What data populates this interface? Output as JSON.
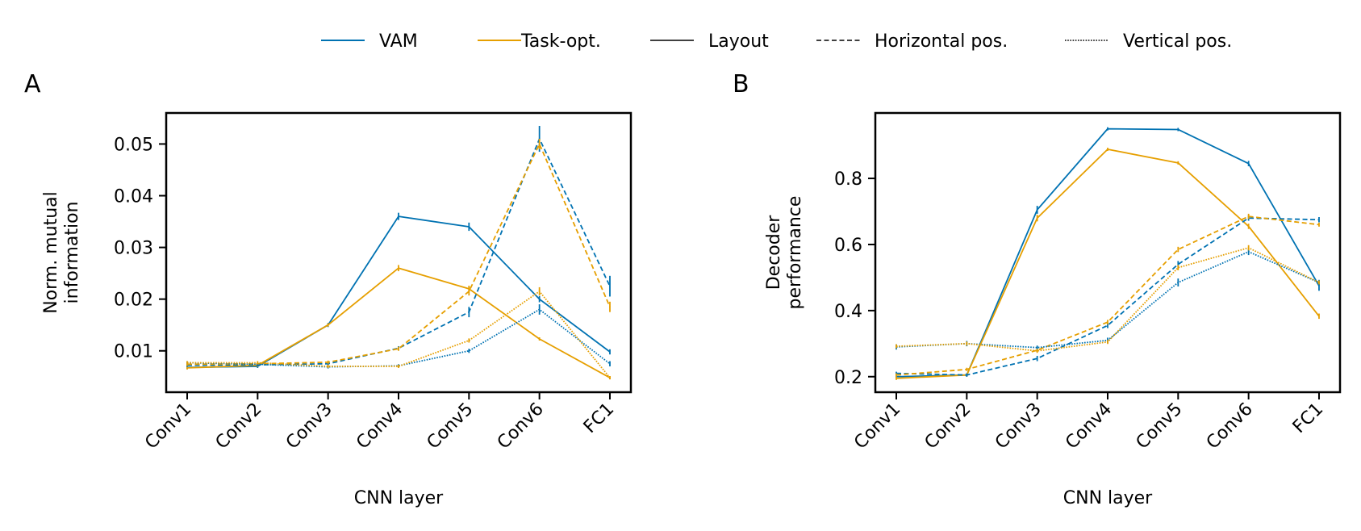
{
  "figure": {
    "panel_labels": [
      "A",
      "B"
    ],
    "legend": [
      {
        "label": "VAM",
        "kind": "color",
        "color": "#0072b2"
      },
      {
        "label": "Task-opt.",
        "kind": "color",
        "color": "#e69f00"
      },
      {
        "label": "Layout",
        "kind": "style",
        "dash": "solid"
      },
      {
        "label": "Horizontal pos.",
        "kind": "style",
        "dash": "dashed"
      },
      {
        "label": "Vertical pos.",
        "kind": "style",
        "dash": "dotted"
      }
    ]
  },
  "chart_data": [
    {
      "type": "line",
      "panel": "A",
      "title": "",
      "xlabel": "CNN layer",
      "ylabel": [
        "Norm. mutual",
        "information"
      ],
      "categories": [
        "Conv1",
        "Conv2",
        "Conv3",
        "Conv4",
        "Conv5",
        "Conv6",
        "FC1"
      ],
      "ylim": [
        0.002,
        0.056
      ],
      "yticks": [
        0.01,
        0.02,
        0.03,
        0.04,
        0.05
      ],
      "ytick_labels": [
        "0.01",
        "0.02",
        "0.03",
        "0.04",
        "0.05"
      ],
      "series": [
        {
          "name": "VAM - Layout",
          "model": "VAM",
          "target": "Layout",
          "color": "#0072b2",
          "dash": "solid",
          "values": [
            0.0068,
            0.007,
            0.015,
            0.036,
            0.034,
            0.02,
            0.0098
          ],
          "errors": [
            0.0003,
            0.0003,
            0.0004,
            0.0007,
            0.0008,
            0.0006,
            0.0005
          ]
        },
        {
          "name": "Task-opt. - Layout",
          "model": "Task-opt.",
          "target": "Layout",
          "color": "#e69f00",
          "dash": "solid",
          "values": [
            0.0067,
            0.0072,
            0.015,
            0.026,
            0.022,
            0.0123,
            0.0048
          ],
          "errors": [
            0.0002,
            0.0002,
            0.0003,
            0.0006,
            0.0006,
            0.0003,
            0.0002
          ]
        },
        {
          "name": "VAM - Horizontal pos.",
          "model": "VAM",
          "target": "Horizontal pos.",
          "color": "#0072b2",
          "dash": "dashed",
          "values": [
            0.0072,
            0.0073,
            0.0075,
            0.0105,
            0.0175,
            0.051,
            0.0225
          ],
          "errors": [
            0.0003,
            0.0003,
            0.0003,
            0.0004,
            0.001,
            0.0025,
            0.002
          ]
        },
        {
          "name": "Task-opt. - Horizontal pos.",
          "model": "Task-opt.",
          "target": "Horizontal pos.",
          "color": "#e69f00",
          "dash": "dashed",
          "values": [
            0.0074,
            0.0075,
            0.0078,
            0.0104,
            0.0215,
            0.05,
            0.0185
          ],
          "errors": [
            0.0003,
            0.0003,
            0.0003,
            0.0004,
            0.0008,
            0.001,
            0.001
          ]
        },
        {
          "name": "VAM - Vertical pos.",
          "model": "VAM",
          "target": "Vertical pos.",
          "color": "#0072b2",
          "dash": "dotted",
          "values": [
            0.0077,
            0.0074,
            0.0069,
            0.0071,
            0.01,
            0.018,
            0.0075
          ],
          "errors": [
            0.0003,
            0.0003,
            0.0003,
            0.0003,
            0.0004,
            0.001,
            0.0005
          ]
        },
        {
          "name": "Task-opt. - Vertical pos.",
          "model": "Task-opt.",
          "target": "Vertical pos.",
          "color": "#e69f00",
          "dash": "dotted",
          "values": [
            0.0077,
            0.0077,
            0.007,
            0.007,
            0.012,
            0.0215,
            0.0048
          ],
          "errors": [
            0.0003,
            0.0003,
            0.0003,
            0.0003,
            0.0004,
            0.0008,
            0.0002
          ]
        }
      ]
    },
    {
      "type": "line",
      "panel": "B",
      "title": "",
      "xlabel": "CNN layer",
      "ylabel": [
        "Decoder",
        "performance"
      ],
      "categories": [
        "Conv1",
        "Conv2",
        "Conv3",
        "Conv4",
        "Conv5",
        "Conv6",
        "FC1"
      ],
      "ylim": [
        0.153,
        0.998
      ],
      "yticks": [
        0.2,
        0.4,
        0.6,
        0.8
      ],
      "ytick_labels": [
        "0.2",
        "0.4",
        "0.6",
        "0.8"
      ],
      "series": [
        {
          "name": "VAM - Layout",
          "model": "VAM",
          "target": "Layout",
          "color": "#0072b2",
          "dash": "solid",
          "values": [
            0.2,
            0.205,
            0.705,
            0.95,
            0.948,
            0.845,
            0.475
          ],
          "errors": [
            0.005,
            0.005,
            0.012,
            0.004,
            0.004,
            0.008,
            0.015
          ]
        },
        {
          "name": "Task-opt. - Layout",
          "model": "Task-opt.",
          "target": "Layout",
          "color": "#e69f00",
          "dash": "solid",
          "values": [
            0.195,
            0.205,
            0.68,
            0.888,
            0.847,
            0.655,
            0.383
          ],
          "errors": [
            0.004,
            0.004,
            0.01,
            0.004,
            0.005,
            0.008,
            0.008
          ]
        },
        {
          "name": "VAM - Horizontal pos.",
          "model": "VAM",
          "target": "Horizontal pos.",
          "color": "#0072b2",
          "dash": "dashed",
          "values": [
            0.21,
            0.205,
            0.255,
            0.355,
            0.54,
            0.68,
            0.675
          ],
          "errors": [
            0.005,
            0.005,
            0.008,
            0.008,
            0.01,
            0.008,
            0.008
          ]
        },
        {
          "name": "Task-opt. - Horizontal pos.",
          "model": "Task-opt.",
          "target": "Horizontal pos.",
          "color": "#e69f00",
          "dash": "dashed",
          "values": [
            0.205,
            0.222,
            0.28,
            0.365,
            0.585,
            0.685,
            0.66
          ],
          "errors": [
            0.004,
            0.004,
            0.006,
            0.007,
            0.008,
            0.008,
            0.006
          ]
        },
        {
          "name": "VAM - Vertical pos.",
          "model": "VAM",
          "target": "Vertical pos.",
          "color": "#0072b2",
          "dash": "dotted",
          "values": [
            0.29,
            0.3,
            0.288,
            0.31,
            0.485,
            0.578,
            0.485
          ],
          "errors": [
            0.008,
            0.008,
            0.006,
            0.008,
            0.012,
            0.01,
            0.008
          ]
        },
        {
          "name": "Task-opt. - Vertical pos.",
          "model": "Task-opt.",
          "target": "Vertical pos.",
          "color": "#e69f00",
          "dash": "dotted",
          "values": [
            0.292,
            0.3,
            0.278,
            0.305,
            0.53,
            0.59,
            0.485
          ],
          "errors": [
            0.006,
            0.006,
            0.006,
            0.006,
            0.008,
            0.008,
            0.006
          ]
        }
      ]
    }
  ]
}
